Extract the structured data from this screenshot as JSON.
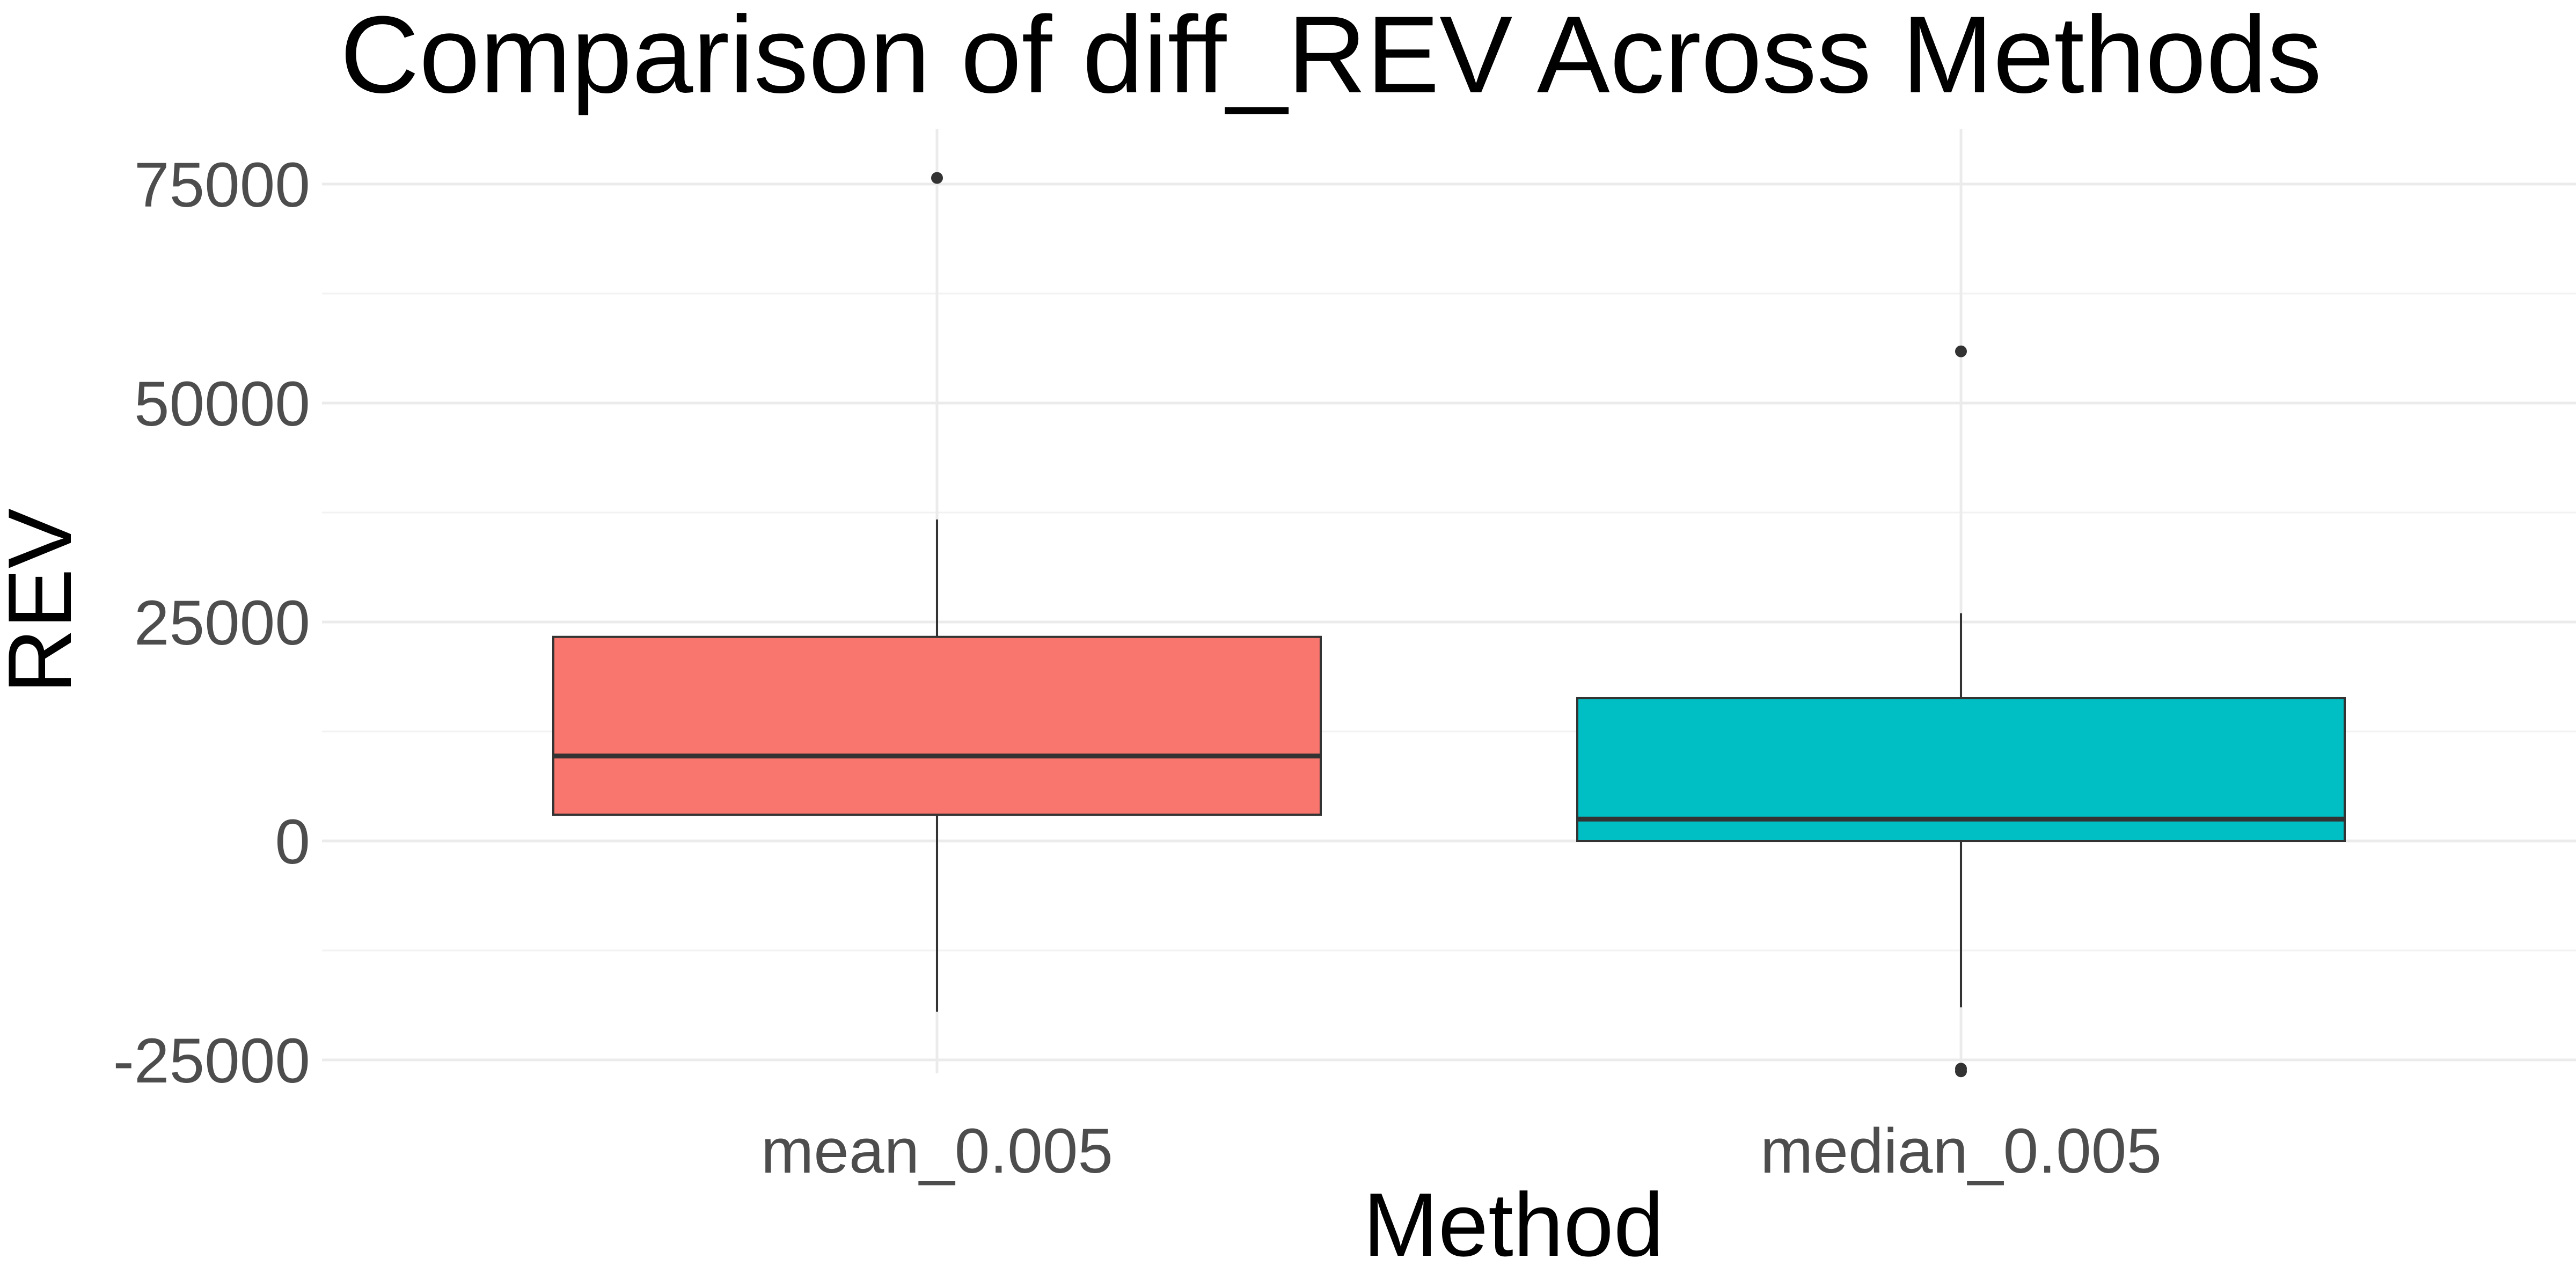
{
  "chart_data": {
    "type": "box",
    "title": "Comparison of diff_REV Across Methods",
    "xlabel": "Method",
    "ylabel": "REV",
    "ylim": [
      -27500,
      81500
    ],
    "yticks": [
      -25000,
      0,
      25000,
      50000,
      75000
    ],
    "ytick_labels": [
      "-25000",
      "0",
      "25000",
      "50000",
      "75000"
    ],
    "grid": true,
    "legend": "none",
    "categories": [
      "mean_0.005",
      "median_0.005"
    ],
    "boxes": [
      {
        "category": "mean_0.005",
        "whisker_low": -19500,
        "q1": 3000,
        "median": 9700,
        "q3": 23300,
        "whisker_high": 36700,
        "outliers": [
          75700
        ],
        "color": "#F8766D"
      },
      {
        "category": "median_0.005",
        "whisker_low": -19000,
        "q1": 0,
        "median": 2500,
        "q3": 16300,
        "whisker_high": 26000,
        "outliers": [
          55900,
          -26000,
          -26300
        ],
        "color": "#00BFC4"
      }
    ]
  }
}
